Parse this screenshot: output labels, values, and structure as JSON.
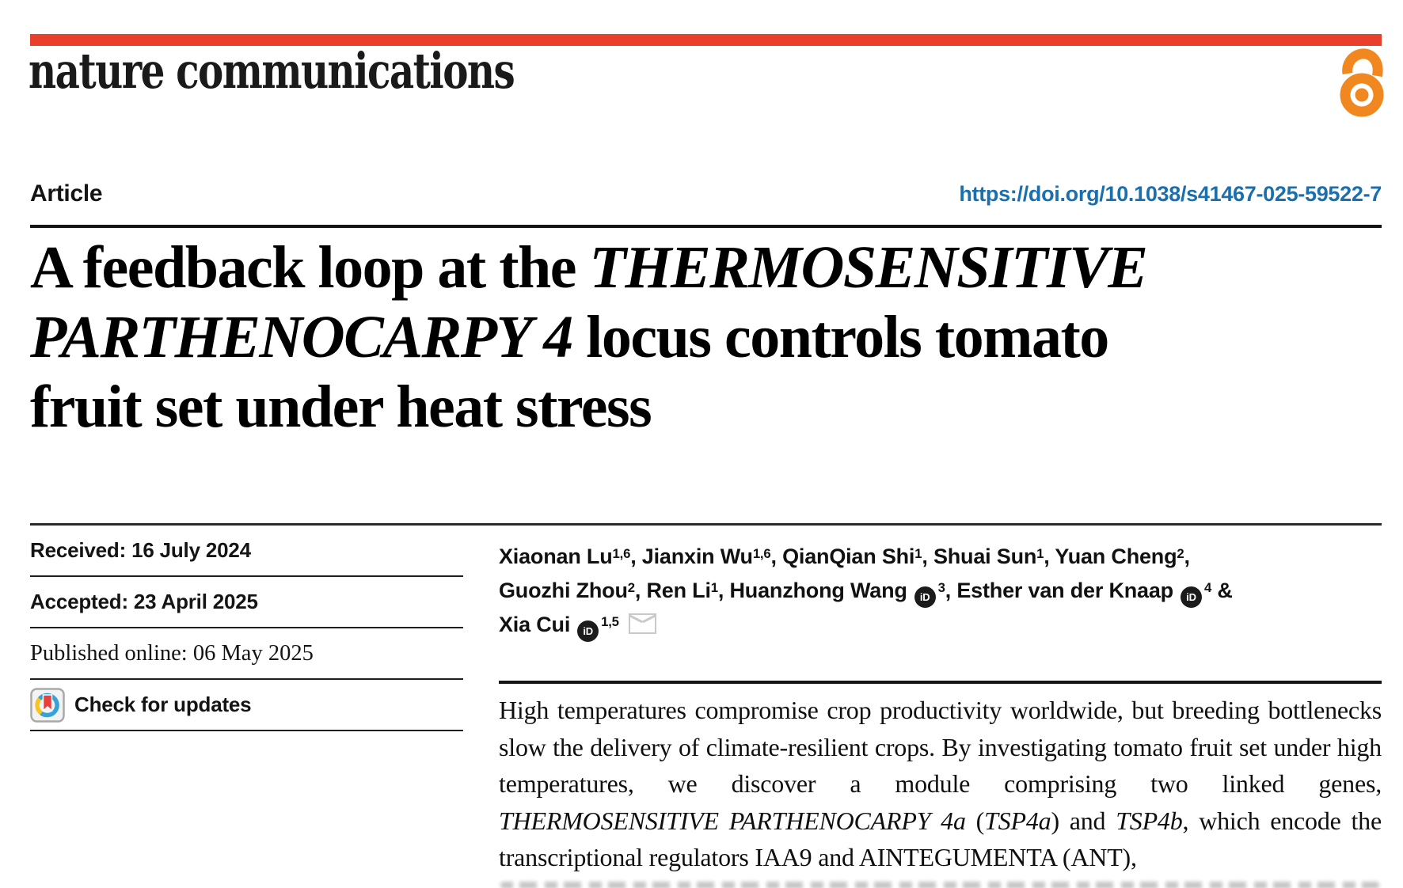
{
  "colors": {
    "brand_red": "#e8402c",
    "link_blue": "#1a6fae",
    "open_access_orange": "#f0871f",
    "rule_dark": "#1f1f1f",
    "orcid_black": "#1b1b1b",
    "envelope_gray": "#c9c9c9"
  },
  "masthead": {
    "journal": "nature communications",
    "open_access_icon": "open-access-padlock-icon"
  },
  "article": {
    "type_label": "Article",
    "doi": "https://doi.org/10.1038/s41467-025-59522-7",
    "title_segments": [
      {
        "t": "A feedback loop at the "
      },
      {
        "t": "THERMOSENSITIVE",
        "i": true
      },
      {
        "br": true
      },
      {
        "t": "PARTHENOCARPY 4",
        "i": true
      },
      {
        "t": " locus controls tomato"
      },
      {
        "br": true
      },
      {
        "t": "fruit set under heat stress"
      }
    ]
  },
  "meta_panel": {
    "rows": [
      {
        "text": "Received: 16 July 2024"
      },
      {
        "text": "Accepted: 23 April 2025"
      },
      {
        "text": "Published online: 06 May 2025",
        "serif": true
      }
    ],
    "check_updates_label": "Check for updates",
    "check_updates_icon": "crossmark-icon"
  },
  "authors": {
    "segments": [
      {
        "t": "Xiaonan Lu"
      },
      {
        "t": "1,6",
        "sup": true
      },
      {
        "t": ", Jianxin Wu"
      },
      {
        "t": "1,6",
        "sup": true
      },
      {
        "t": ", QianQian Shi"
      },
      {
        "t": "1",
        "sup": true
      },
      {
        "t": ", Shuai Sun"
      },
      {
        "t": "1",
        "sup": true
      },
      {
        "t": ", Yuan Cheng"
      },
      {
        "t": "2",
        "sup": true
      },
      {
        "t": ","
      },
      {
        "br": true
      },
      {
        "t": "Guozhi Zhou"
      },
      {
        "t": "2",
        "sup": true
      },
      {
        "t": ", Ren Li"
      },
      {
        "t": "1",
        "sup": true
      },
      {
        "t": ", Huanzhong Wang"
      },
      {
        "icon": "orcid-id-icon"
      },
      {
        "t": "3",
        "sup": true
      },
      {
        "t": ", Esther van der Knaap"
      },
      {
        "icon": "orcid-id-icon"
      },
      {
        "t": "4",
        "sup": true
      },
      {
        "t": " &"
      },
      {
        "br": true
      },
      {
        "t": "Xia Cui"
      },
      {
        "icon": "orcid-id-icon"
      },
      {
        "t": "1,5",
        "sup": true
      },
      {
        "icon": "envelope-icon"
      }
    ],
    "orcid_icon_text": "iD"
  },
  "abstract": {
    "segments": [
      {
        "t": "High temperatures compromise crop productivity worldwide, but breeding bottlenecks slow the delivery of climate-resilient crops. By investigating tomato fruit set under high temperatures, we discover a module comprising two linked genes, "
      },
      {
        "t": "THERMOSENSITIVE PARTHENOCARPY 4a",
        "i": true
      },
      {
        "t": " ("
      },
      {
        "t": "TSP4a",
        "i": true
      },
      {
        "t": ") and "
      },
      {
        "t": "TSP4b",
        "i": true
      },
      {
        "t": ", which encode the transcriptional regulators IAA9 and AINTEGUMENTA (ANT),"
      }
    ]
  }
}
